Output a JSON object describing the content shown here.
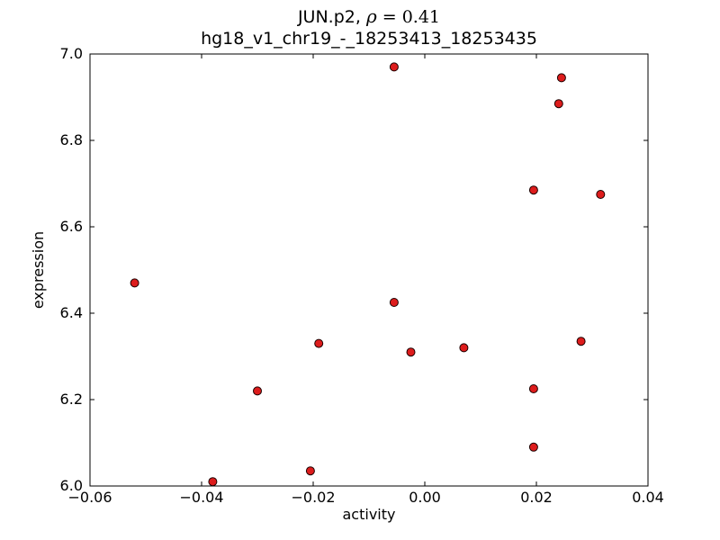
{
  "chart_data": {
    "type": "scatter",
    "title_line1": {
      "prefix": "JUN.p2, ",
      "rho": "ρ",
      "suffix": " = 0.41"
    },
    "title_line2": "hg18_v1_chr19_-_18253413_18253435",
    "xlabel": "activity",
    "ylabel": "expression",
    "xlim": [
      -0.06,
      0.04
    ],
    "ylim": [
      6.0,
      7.0
    ],
    "xticks": [
      -0.06,
      -0.04,
      -0.02,
      0.0,
      0.02,
      0.04
    ],
    "xtick_labels": [
      "−0.06",
      "−0.04",
      "−0.02",
      "0.00",
      "0.02",
      "0.04"
    ],
    "yticks": [
      6.0,
      6.2,
      6.4,
      6.6,
      6.8,
      7.0
    ],
    "ytick_labels": [
      "6.0",
      "6.2",
      "6.4",
      "6.6",
      "6.8",
      "7.0"
    ],
    "grid": false,
    "legend": null,
    "marker": {
      "shape": "circle",
      "fill": "#dd1c1c",
      "edge": "#1a0000",
      "radius": 4.5
    },
    "points": [
      [
        -0.052,
        6.47
      ],
      [
        -0.038,
        6.01
      ],
      [
        -0.03,
        6.22
      ],
      [
        -0.0205,
        6.035
      ],
      [
        -0.019,
        6.33
      ],
      [
        -0.0055,
        6.97
      ],
      [
        -0.0055,
        6.425
      ],
      [
        -0.0025,
        6.31
      ],
      [
        0.007,
        6.32
      ],
      [
        0.0195,
        6.685
      ],
      [
        0.0195,
        6.225
      ],
      [
        0.0195,
        6.09
      ],
      [
        0.0245,
        6.945
      ],
      [
        0.024,
        6.885
      ],
      [
        0.028,
        6.335
      ],
      [
        0.0315,
        6.675
      ]
    ]
  }
}
